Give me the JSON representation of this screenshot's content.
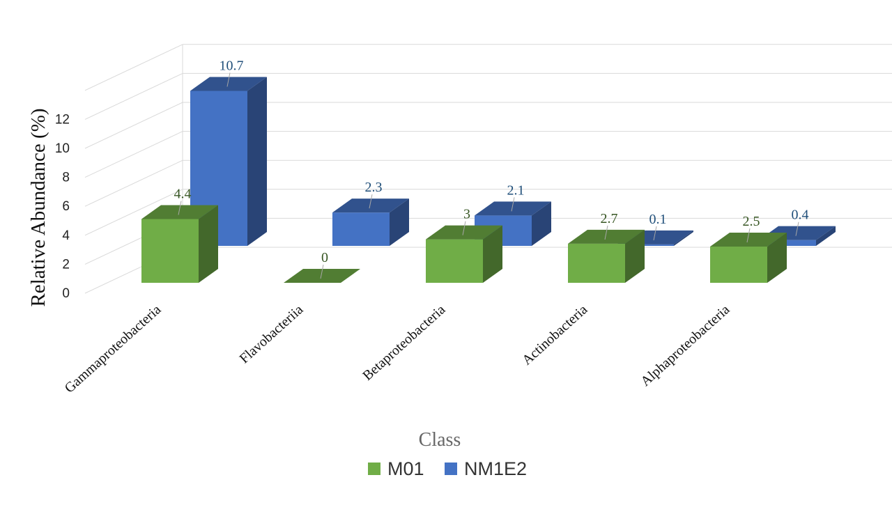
{
  "chart_data": {
    "type": "bar",
    "subtype": "3d-clustered-column",
    "title": "",
    "xlabel": "Class",
    "ylabel": "Relative Abundance  (%)",
    "categories": [
      "Gammaproteobacteria",
      "Flavobacteriia",
      "Betaproteobacteria",
      "Actinobacteria",
      "Alphaproteobacteria"
    ],
    "series": [
      {
        "name": "M01",
        "values": [
          4.4,
          0,
          3,
          2.7,
          2.5
        ],
        "color": "#70AD47",
        "label_color": "#375623"
      },
      {
        "name": "NM1E2",
        "values": [
          10.7,
          2.3,
          2.1,
          0.1,
          0.4
        ],
        "color": "#4472C4",
        "label_color": "#1F4E79"
      }
    ],
    "yticks": [
      0,
      2,
      4,
      6,
      8,
      10,
      12
    ],
    "ylim": [
      0,
      14
    ],
    "grid": true,
    "legend_position": "bottom"
  }
}
